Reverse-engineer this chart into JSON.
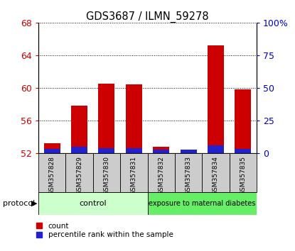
{
  "title": "GDS3687 / ILMN_59278",
  "samples": [
    "GSM357828",
    "GSM357829",
    "GSM357830",
    "GSM357831",
    "GSM357832",
    "GSM357833",
    "GSM357834",
    "GSM357835"
  ],
  "count_values": [
    53.2,
    57.8,
    60.5,
    60.4,
    52.8,
    52.4,
    65.2,
    59.8
  ],
  "percentile_values": [
    3.0,
    5.0,
    4.0,
    3.5,
    2.5,
    2.5,
    6.0,
    3.0
  ],
  "ymin": 52,
  "ymax": 68,
  "yticks": [
    52,
    56,
    60,
    64,
    68
  ],
  "y2min": 0,
  "y2max": 100,
  "y2ticks": [
    0,
    25,
    50,
    75,
    100
  ],
  "y2ticklabels": [
    "0",
    "25",
    "50",
    "75",
    "100%"
  ],
  "bar_color_red": "#cc0000",
  "bar_color_blue": "#2222cc",
  "bar_width": 0.6,
  "control_color": "#ccffcc",
  "diabetes_color": "#66ee66",
  "control_label": "control",
  "diabetes_label": "exposure to maternal diabetes",
  "protocol_label": "protocol",
  "control_indices": [
    0,
    1,
    2,
    3
  ],
  "diabetes_indices": [
    4,
    5,
    6,
    7
  ],
  "legend_count": "count",
  "legend_percentile": "percentile rank within the sample",
  "tick_color_left": "#cc0000",
  "tick_color_right": "#0000cc",
  "xlabel_bg": "#cccccc"
}
